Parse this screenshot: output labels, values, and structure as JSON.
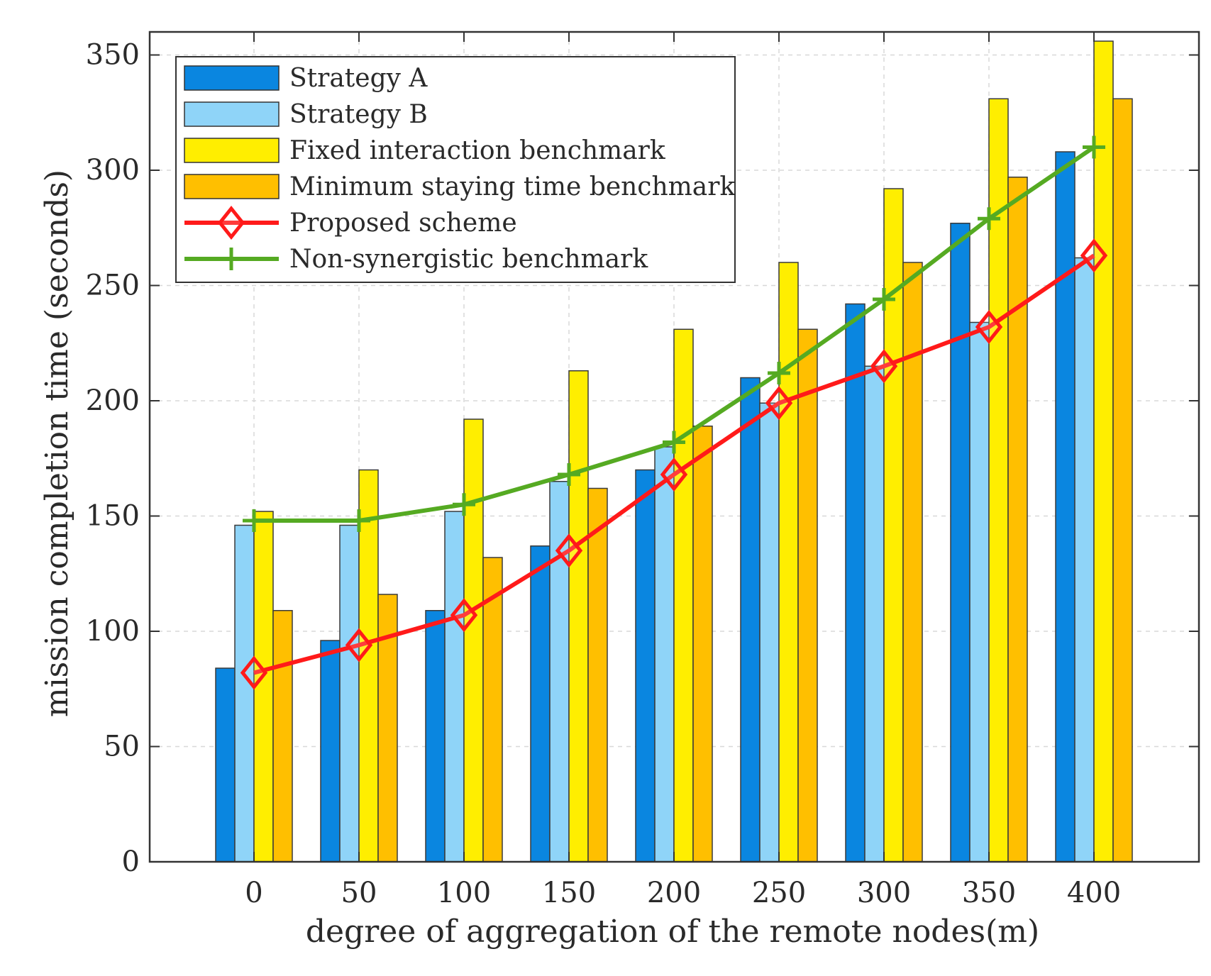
{
  "chart_data": {
    "type": "bar",
    "title": "",
    "xlabel": "degree of aggregation of the remote nodes(m)",
    "ylabel": "mission completion time (seconds)",
    "categories": [
      "0",
      "50",
      "100",
      "150",
      "200",
      "250",
      "300",
      "350",
      "400"
    ],
    "ylim": [
      0,
      360
    ],
    "yticks": [
      "0",
      "50",
      "100",
      "150",
      "200",
      "250",
      "300",
      "350"
    ],
    "grid": true,
    "legend_position": "top-left",
    "bar_series": [
      {
        "name": "Strategy A",
        "color": "#0a86e0",
        "values": [
          84,
          96,
          109,
          137,
          170,
          210,
          242,
          277,
          308
        ]
      },
      {
        "name": "Strategy B",
        "color": "#8fd4f8",
        "values": [
          146,
          146,
          152,
          165,
          180,
          199,
          215,
          234,
          262
        ]
      },
      {
        "name": "Fixed interaction benchmark",
        "color": "#ffee00",
        "values": [
          152,
          170,
          192,
          213,
          231,
          260,
          292,
          331,
          356
        ]
      },
      {
        "name": "Minimum staying time benchmark",
        "color": "#ffbf00",
        "values": [
          109,
          116,
          132,
          162,
          189,
          231,
          260,
          297,
          331
        ]
      }
    ],
    "line_series": [
      {
        "name": "Proposed scheme",
        "color": "#ff1a1a",
        "marker": "diamond",
        "values": [
          82,
          94,
          107,
          135,
          168,
          199,
          215,
          232,
          263
        ]
      },
      {
        "name": "Non-synergistic benchmark",
        "color": "#55aa22",
        "marker": "plus",
        "values": [
          148,
          148,
          155,
          168,
          182,
          212,
          244,
          279,
          310
        ]
      }
    ]
  }
}
